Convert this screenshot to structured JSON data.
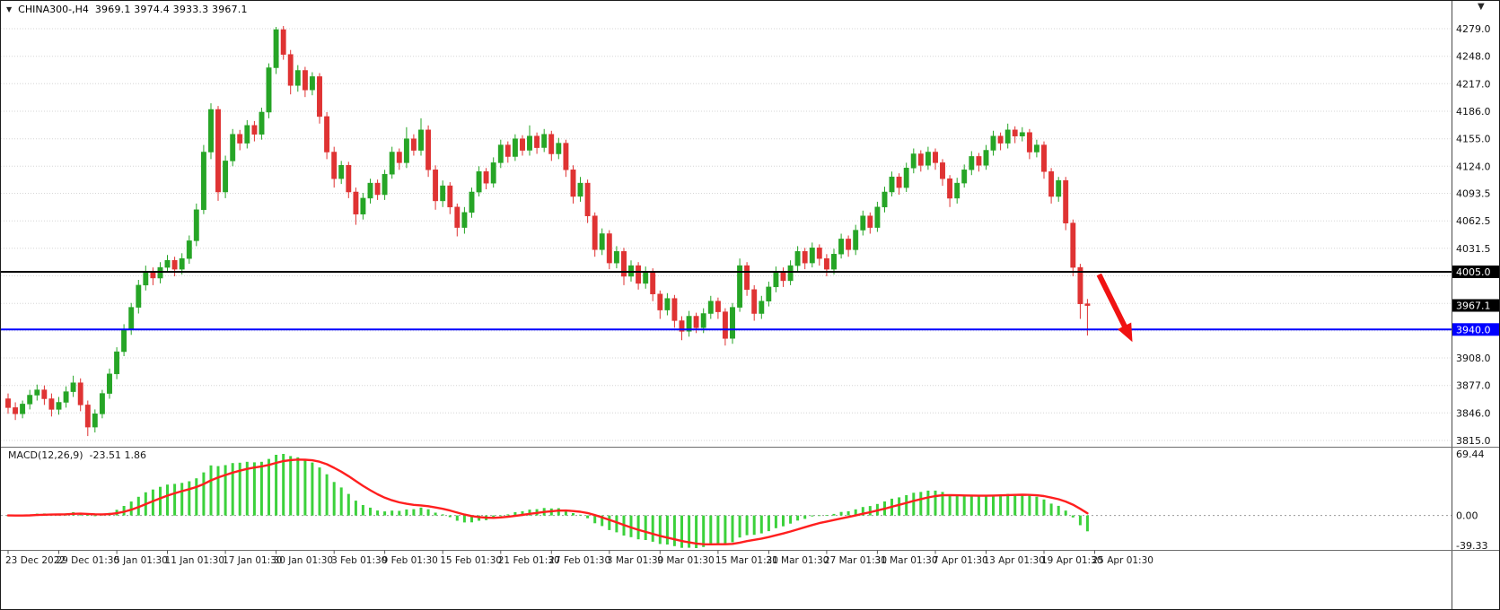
{
  "colors": {
    "bull": "#26a526",
    "bear": "#df3333",
    "hist": "#3cd13c",
    "signal": "#ff1f1f",
    "grid": "#d6d6d6",
    "axis_text": "#111111",
    "black_line": "#000000",
    "blue_line": "#0000ff",
    "arrow": "#f01212",
    "badge_text": "#ffffff"
  },
  "header": {
    "marker_icon": "triangle-down-icon",
    "symbol_period": "CHINA300-,H4",
    "ohlc": "3969.1 3974.4 3933.3 3967.1"
  },
  "top_right": {
    "icon": "dropdown-caret",
    "glyph": "▼"
  },
  "chart_data": {
    "type": "candlestick",
    "instrument": "CHINA300-",
    "timeframe": "H4",
    "last_candle": {
      "open": 3969.1,
      "high": 3974.4,
      "low": 3933.3,
      "close": 3967.1
    },
    "price_axis": {
      "visible_labels": [
        {
          "t": "4279.0",
          "v": 4279.0
        },
        {
          "t": "4248.0",
          "v": 4248.0
        },
        {
          "t": "4217.0",
          "v": 4217.0
        },
        {
          "t": "4186.0",
          "v": 4186.0
        },
        {
          "t": "4155.0",
          "v": 4155.0
        },
        {
          "t": "4124.0",
          "v": 4124.0
        },
        {
          "t": "4093.5",
          "v": 4093.5
        },
        {
          "t": "4062.5",
          "v": 4062.5
        },
        {
          "t": "4031.5",
          "v": 4031.5
        },
        {
          "t": "3908.0",
          "v": 3908.0
        },
        {
          "t": "3877.0",
          "v": 3877.0
        },
        {
          "t": "3846.0",
          "v": 3846.0
        },
        {
          "t": "3815.0",
          "v": 3815.0
        }
      ],
      "badges": [
        {
          "t": "4005.0",
          "v": 4005.0,
          "bg": "#000000"
        },
        {
          "t": "3967.1",
          "v": 3967.1,
          "bg": "#000000"
        },
        {
          "t": "3940.0",
          "v": 3940.0,
          "bg": "#0000ff"
        }
      ]
    },
    "grid_levels": [
      4279.0,
      4248.0,
      4217.0,
      4186.0,
      4155.0,
      4124.0,
      4093.5,
      4062.5,
      4031.5,
      4000.5,
      3969.5,
      3938.5,
      3908.0,
      3877.0,
      3846.0,
      3815.0
    ],
    "hlines": [
      {
        "price": 4005.0,
        "color": "#000000",
        "label": "4005.0"
      },
      {
        "price": 3940.0,
        "color": "#0000ff",
        "label": "3940.0"
      }
    ],
    "time_labels": [
      {
        "t": "23 Dec 2022",
        "i": 0
      },
      {
        "t": "29 Dec 01:30",
        "i": 7
      },
      {
        "t": "5 Jan 01:30",
        "i": 15
      },
      {
        "t": "11 Jan 01:30",
        "i": 22
      },
      {
        "t": "17 Jan 01:30",
        "i": 30
      },
      {
        "t": "30 Jan 01:30",
        "i": 37
      },
      {
        "t": "3 Feb 01:30",
        "i": 45
      },
      {
        "t": "9 Feb 01:30",
        "i": 52
      },
      {
        "t": "15 Feb 01:30",
        "i": 60
      },
      {
        "t": "21 Feb 01:30",
        "i": 68
      },
      {
        "t": "27 Feb 01:30",
        "i": 75
      },
      {
        "t": "3 Mar 01:30",
        "i": 83
      },
      {
        "t": "9 Mar 01:30",
        "i": 90
      },
      {
        "t": "15 Mar 01:30",
        "i": 98
      },
      {
        "t": "21 Mar 01:30",
        "i": 105
      },
      {
        "t": "27 Mar 01:30",
        "i": 113
      },
      {
        "t": "31 Mar 01:30",
        "i": 120
      },
      {
        "t": "7 Apr 01:30",
        "i": 128
      },
      {
        "t": "13 Apr 01:30",
        "i": 135
      },
      {
        "t": "19 Apr 01:30",
        "i": 143
      },
      {
        "t": "25 Apr 01:30",
        "i": 150
      }
    ],
    "candles": [
      [
        3862,
        3868,
        3845,
        3852
      ],
      [
        3852,
        3858,
        3838,
        3845
      ],
      [
        3845,
        3860,
        3840,
        3856
      ],
      [
        3856,
        3872,
        3850,
        3866
      ],
      [
        3866,
        3878,
        3860,
        3872
      ],
      [
        3872,
        3877,
        3855,
        3862
      ],
      [
        3862,
        3868,
        3842,
        3850
      ],
      [
        3850,
        3864,
        3844,
        3858
      ],
      [
        3858,
        3876,
        3852,
        3870
      ],
      [
        3870,
        3888,
        3864,
        3880
      ],
      [
        3880,
        3885,
        3848,
        3855
      ],
      [
        3855,
        3860,
        3820,
        3830
      ],
      [
        3830,
        3850,
        3824,
        3845
      ],
      [
        3845,
        3872,
        3840,
        3868
      ],
      [
        3868,
        3896,
        3862,
        3890
      ],
      [
        3890,
        3920,
        3884,
        3915
      ],
      [
        3915,
        3946,
        3910,
        3940
      ],
      [
        3940,
        3970,
        3934,
        3965
      ],
      [
        3965,
        3996,
        3958,
        3990
      ],
      [
        3990,
        4012,
        3984,
        4005
      ],
      [
        4005,
        4010,
        3990,
        3998
      ],
      [
        3998,
        4016,
        3992,
        4010
      ],
      [
        4010,
        4024,
        4004,
        4018
      ],
      [
        4018,
        4022,
        4000,
        4008
      ],
      [
        4008,
        4026,
        4002,
        4020
      ],
      [
        4020,
        4046,
        4014,
        4040
      ],
      [
        4040,
        4082,
        4034,
        4075
      ],
      [
        4075,
        4148,
        4070,
        4140
      ],
      [
        4140,
        4195,
        4132,
        4188
      ],
      [
        4188,
        4192,
        4085,
        4095
      ],
      [
        4095,
        4136,
        4088,
        4130
      ],
      [
        4130,
        4166,
        4124,
        4160
      ],
      [
        4160,
        4165,
        4142,
        4150
      ],
      [
        4150,
        4176,
        4144,
        4170
      ],
      [
        4170,
        4175,
        4152,
        4160
      ],
      [
        4160,
        4190,
        4154,
        4185
      ],
      [
        4185,
        4240,
        4178,
        4235
      ],
      [
        4235,
        4281,
        4228,
        4278
      ],
      [
        4278,
        4282,
        4244,
        4250
      ],
      [
        4250,
        4255,
        4205,
        4215
      ],
      [
        4215,
        4238,
        4208,
        4232
      ],
      [
        4232,
        4236,
        4202,
        4210
      ],
      [
        4210,
        4230,
        4204,
        4225
      ],
      [
        4225,
        4229,
        4172,
        4180
      ],
      [
        4180,
        4185,
        4132,
        4140
      ],
      [
        4140,
        4146,
        4100,
        4110
      ],
      [
        4110,
        4130,
        4104,
        4125
      ],
      [
        4125,
        4129,
        4088,
        4095
      ],
      [
        4095,
        4100,
        4058,
        4070
      ],
      [
        4070,
        4094,
        4064,
        4088
      ],
      [
        4088,
        4110,
        4082,
        4105
      ],
      [
        4105,
        4109,
        4086,
        4092
      ],
      [
        4092,
        4120,
        4086,
        4115
      ],
      [
        4115,
        4146,
        4110,
        4140
      ],
      [
        4140,
        4144,
        4120,
        4128
      ],
      [
        4128,
        4168,
        4122,
        4155
      ],
      [
        4155,
        4160,
        4136,
        4142
      ],
      [
        4142,
        4178,
        4136,
        4165
      ],
      [
        4165,
        4170,
        4112,
        4120
      ],
      [
        4120,
        4125,
        4075,
        4085
      ],
      [
        4085,
        4108,
        4078,
        4102
      ],
      [
        4102,
        4106,
        4070,
        4078
      ],
      [
        4078,
        4082,
        4045,
        4055
      ],
      [
        4055,
        4078,
        4048,
        4072
      ],
      [
        4072,
        4100,
        4066,
        4095
      ],
      [
        4095,
        4124,
        4090,
        4118
      ],
      [
        4118,
        4122,
        4098,
        4105
      ],
      [
        4105,
        4134,
        4100,
        4128
      ],
      [
        4128,
        4154,
        4122,
        4148
      ],
      [
        4148,
        4152,
        4128,
        4135
      ],
      [
        4135,
        4160,
        4130,
        4155
      ],
      [
        4155,
        4159,
        4136,
        4142
      ],
      [
        4142,
        4170,
        4136,
        4158
      ],
      [
        4158,
        4162,
        4138,
        4145
      ],
      [
        4145,
        4166,
        4140,
        4160
      ],
      [
        4160,
        4164,
        4130,
        4138
      ],
      [
        4138,
        4156,
        4132,
        4150
      ],
      [
        4150,
        4154,
        4112,
        4120
      ],
      [
        4120,
        4125,
        4082,
        4090
      ],
      [
        4090,
        4112,
        4084,
        4105
      ],
      [
        4105,
        4109,
        4060,
        4068
      ],
      [
        4068,
        4072,
        4022,
        4030
      ],
      [
        4030,
        4054,
        4024,
        4048
      ],
      [
        4048,
        4052,
        4008,
        4015
      ],
      [
        4015,
        4034,
        4009,
        4028
      ],
      [
        4028,
        4032,
        3990,
        4000
      ],
      [
        4000,
        4018,
        3994,
        4012
      ],
      [
        4012,
        4016,
        3985,
        3992
      ],
      [
        3992,
        4011,
        3986,
        4005
      ],
      [
        4005,
        4009,
        3972,
        3980
      ],
      [
        3980,
        3984,
        3952,
        3962
      ],
      [
        3962,
        3981,
        3956,
        3975
      ],
      [
        3975,
        3979,
        3942,
        3950
      ],
      [
        3950,
        3955,
        3928,
        3938
      ],
      [
        3938,
        3961,
        3932,
        3955
      ],
      [
        3955,
        3959,
        3936,
        3942
      ],
      [
        3942,
        3964,
        3936,
        3958
      ],
      [
        3958,
        3978,
        3952,
        3972
      ],
      [
        3972,
        3976,
        3952,
        3960
      ],
      [
        3960,
        3964,
        3922,
        3930
      ],
      [
        3930,
        3970,
        3924,
        3965
      ],
      [
        3965,
        4020,
        3960,
        4012
      ],
      [
        4012,
        4016,
        3978,
        3985
      ],
      [
        3985,
        3990,
        3950,
        3958
      ],
      [
        3958,
        3978,
        3952,
        3972
      ],
      [
        3972,
        3994,
        3966,
        3988
      ],
      [
        3988,
        4011,
        3982,
        4005
      ],
      [
        4005,
        4010,
        3988,
        3995
      ],
      [
        3995,
        4018,
        3990,
        4012
      ],
      [
        4012,
        4034,
        4006,
        4028
      ],
      [
        4028,
        4032,
        4008,
        4015
      ],
      [
        4015,
        4038,
        4010,
        4032
      ],
      [
        4032,
        4036,
        4012,
        4020
      ],
      [
        4020,
        4025,
        4000,
        4008
      ],
      [
        4008,
        4031,
        4002,
        4025
      ],
      [
        4025,
        4048,
        4020,
        4042
      ],
      [
        4042,
        4046,
        4022,
        4030
      ],
      [
        4030,
        4058,
        4024,
        4052
      ],
      [
        4052,
        4074,
        4046,
        4068
      ],
      [
        4068,
        4072,
        4048,
        4055
      ],
      [
        4055,
        4084,
        4050,
        4078
      ],
      [
        4078,
        4101,
        4072,
        4095
      ],
      [
        4095,
        4118,
        4090,
        4112
      ],
      [
        4112,
        4116,
        4092,
        4100
      ],
      [
        4100,
        4128,
        4095,
        4122
      ],
      [
        4122,
        4144,
        4116,
        4138
      ],
      [
        4138,
        4142,
        4118,
        4125
      ],
      [
        4125,
        4146,
        4120,
        4140
      ],
      [
        4140,
        4144,
        4120,
        4128
      ],
      [
        4128,
        4132,
        4102,
        4110
      ],
      [
        4110,
        4114,
        4078,
        4088
      ],
      [
        4088,
        4111,
        4082,
        4105
      ],
      [
        4105,
        4126,
        4100,
        4120
      ],
      [
        4120,
        4141,
        4114,
        4135
      ],
      [
        4135,
        4139,
        4118,
        4125
      ],
      [
        4125,
        4148,
        4120,
        4142
      ],
      [
        4142,
        4164,
        4136,
        4158
      ],
      [
        4158,
        4162,
        4142,
        4150
      ],
      [
        4150,
        4172,
        4144,
        4165
      ],
      [
        4165,
        4169,
        4150,
        4158
      ],
      [
        4158,
        4168,
        4152,
        4162
      ],
      [
        4162,
        4166,
        4132,
        4140
      ],
      [
        4140,
        4154,
        4134,
        4148
      ],
      [
        4148,
        4152,
        4110,
        4118
      ],
      [
        4118,
        4122,
        4082,
        4090
      ],
      [
        4090,
        4112,
        4084,
        4108
      ],
      [
        4108,
        4112,
        4052,
        4060
      ],
      [
        4060,
        4064,
        4000,
        4010
      ],
      [
        4010,
        4014,
        3952,
        3969
      ],
      [
        3969.1,
        3974.4,
        3933.3,
        3967.1
      ]
    ],
    "macd": {
      "name": "MACD(12,26,9)",
      "params": [
        12,
        26,
        9
      ],
      "values_text": "-23.51 1.86",
      "current_macd": -23.51,
      "current_signal": 1.86,
      "axis_top_text": "69.44",
      "axis_zero_text": "0.00",
      "axis_bottom_text": "-39.33",
      "axis_range": [
        -39.33,
        69.44
      ]
    },
    "annotation_arrow": {
      "from_bar": 150.6,
      "from_price": 4002,
      "to_bar": 155.2,
      "to_price": 3926,
      "note": "red down arrow after price breaks below 4005 level"
    }
  }
}
